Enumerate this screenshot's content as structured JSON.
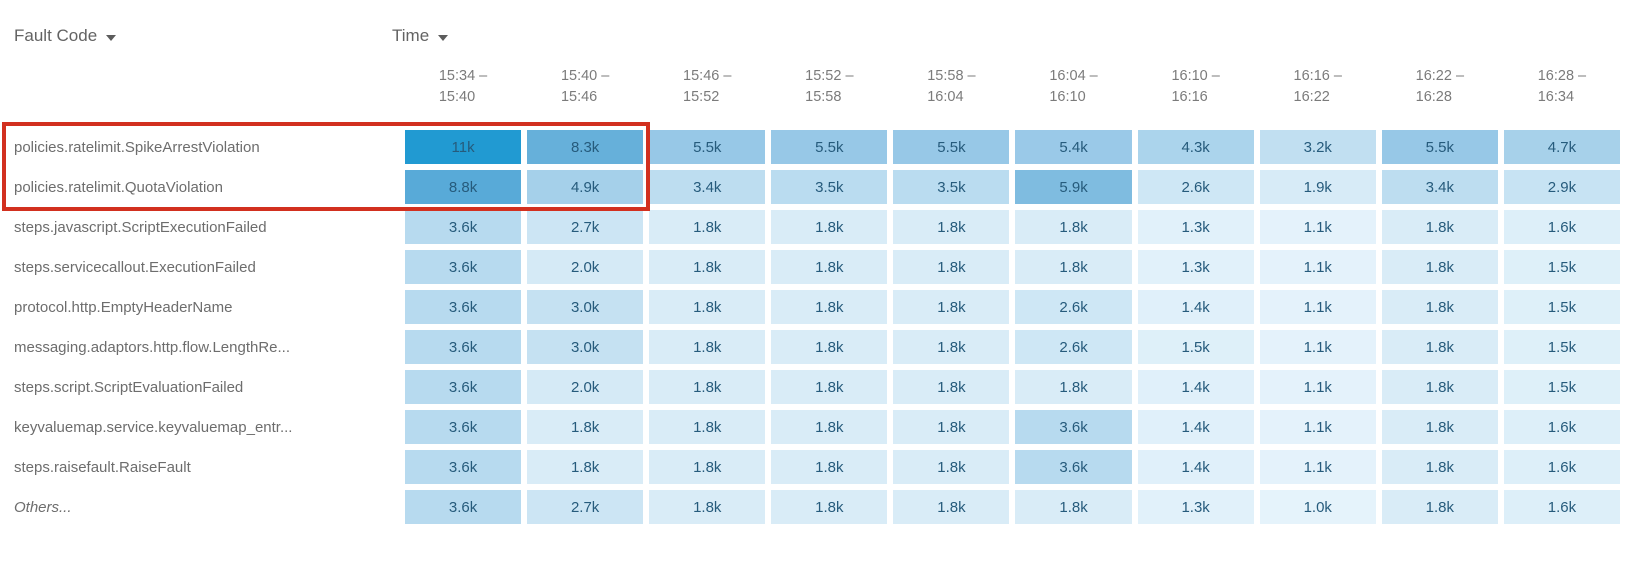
{
  "header": {
    "fault_code_label": "Fault Code",
    "time_label": "Time"
  },
  "highlight": {
    "color": "#d2301f",
    "note_rows_highlighted": 2,
    "note_cols_highlighted": 2
  },
  "color_scale": {
    "11k": "#219ad2",
    "8.8k": "#58aad8",
    "8.3k": "#66b0da",
    "5.9k": "#7fbce0",
    "5.5k": "#97c8e7",
    "5.4k": "#9ac9e8",
    "4.9k": "#a5d0ea",
    "4.7k": "#a7d1ea",
    "4.3k": "#abd4ec",
    "3.6k": "#b7daef",
    "3.5k": "#badcf0",
    "3.4k": "#bdddf0",
    "3.2k": "#c1dff1",
    "3.0k": "#c5e1f2",
    "2.9k": "#c7e3f3",
    "2.7k": "#cce5f4",
    "2.6k": "#cee7f5",
    "2.0k": "#d5eaf6",
    "1.9k": "#d7ebf7",
    "1.8k": "#d9ecf7",
    "1.6k": "#ddeff9",
    "1.5k": "#def0f9",
    "1.4k": "#e0f0fa",
    "1.3k": "#e1f1fa",
    "1.1k": "#e4f2fb",
    "1.0k": "#e5f3fb"
  },
  "chart_data": {
    "type": "heatmap",
    "xlabel": "Time",
    "ylabel": "Fault Code",
    "value_range": [
      1000,
      11000
    ],
    "legend": "none",
    "columns": [
      {
        "line1": "15:34 –",
        "line2": "15:40"
      },
      {
        "line1": "15:40 –",
        "line2": "15:46"
      },
      {
        "line1": "15:46 –",
        "line2": "15:52"
      },
      {
        "line1": "15:52 –",
        "line2": "15:58"
      },
      {
        "line1": "15:58 –",
        "line2": "16:04"
      },
      {
        "line1": "16:04 –",
        "line2": "16:10"
      },
      {
        "line1": "16:10 –",
        "line2": "16:16"
      },
      {
        "line1": "16:16 –",
        "line2": "16:22"
      },
      {
        "line1": "16:22 –",
        "line2": "16:28"
      },
      {
        "line1": "16:28 –",
        "line2": "16:34"
      }
    ],
    "rows": [
      {
        "label": "policies.ratelimit.SpikeArrestViolation",
        "italic": false,
        "highlighted": true,
        "values": [
          "11k",
          "8.3k",
          "5.5k",
          "5.5k",
          "5.5k",
          "5.4k",
          "4.3k",
          "3.2k",
          "5.5k",
          "4.7k"
        ],
        "numeric": [
          11000,
          8300,
          5500,
          5500,
          5500,
          5400,
          4300,
          3200,
          5500,
          4700
        ]
      },
      {
        "label": "policies.ratelimit.QuotaViolation",
        "italic": false,
        "highlighted": true,
        "values": [
          "8.8k",
          "4.9k",
          "3.4k",
          "3.5k",
          "3.5k",
          "5.9k",
          "2.6k",
          "1.9k",
          "3.4k",
          "2.9k"
        ],
        "numeric": [
          8800,
          4900,
          3400,
          3500,
          3500,
          5900,
          2600,
          1900,
          3400,
          2900
        ]
      },
      {
        "label": "steps.javascript.ScriptExecutionFailed",
        "italic": false,
        "highlighted": false,
        "values": [
          "3.6k",
          "2.7k",
          "1.8k",
          "1.8k",
          "1.8k",
          "1.8k",
          "1.3k",
          "1.1k",
          "1.8k",
          "1.6k"
        ],
        "numeric": [
          3600,
          2700,
          1800,
          1800,
          1800,
          1800,
          1300,
          1100,
          1800,
          1600
        ]
      },
      {
        "label": "steps.servicecallout.ExecutionFailed",
        "italic": false,
        "highlighted": false,
        "values": [
          "3.6k",
          "2.0k",
          "1.8k",
          "1.8k",
          "1.8k",
          "1.8k",
          "1.3k",
          "1.1k",
          "1.8k",
          "1.5k"
        ],
        "numeric": [
          3600,
          2000,
          1800,
          1800,
          1800,
          1800,
          1300,
          1100,
          1800,
          1500
        ]
      },
      {
        "label": "protocol.http.EmptyHeaderName",
        "italic": false,
        "highlighted": false,
        "values": [
          "3.6k",
          "3.0k",
          "1.8k",
          "1.8k",
          "1.8k",
          "2.6k",
          "1.4k",
          "1.1k",
          "1.8k",
          "1.5k"
        ],
        "numeric": [
          3600,
          3000,
          1800,
          1800,
          1800,
          2600,
          1400,
          1100,
          1800,
          1500
        ]
      },
      {
        "label": "messaging.adaptors.http.flow.LengthRe...",
        "italic": false,
        "highlighted": false,
        "values": [
          "3.6k",
          "3.0k",
          "1.8k",
          "1.8k",
          "1.8k",
          "2.6k",
          "1.5k",
          "1.1k",
          "1.8k",
          "1.5k"
        ],
        "numeric": [
          3600,
          3000,
          1800,
          1800,
          1800,
          2600,
          1500,
          1100,
          1800,
          1500
        ]
      },
      {
        "label": "steps.script.ScriptEvaluationFailed",
        "italic": false,
        "highlighted": false,
        "values": [
          "3.6k",
          "2.0k",
          "1.8k",
          "1.8k",
          "1.8k",
          "1.8k",
          "1.4k",
          "1.1k",
          "1.8k",
          "1.5k"
        ],
        "numeric": [
          3600,
          2000,
          1800,
          1800,
          1800,
          1800,
          1400,
          1100,
          1800,
          1500
        ]
      },
      {
        "label": "keyvaluemap.service.keyvaluemap_entr...",
        "italic": false,
        "highlighted": false,
        "values": [
          "3.6k",
          "1.8k",
          "1.8k",
          "1.8k",
          "1.8k",
          "3.6k",
          "1.4k",
          "1.1k",
          "1.8k",
          "1.6k"
        ],
        "numeric": [
          3600,
          1800,
          1800,
          1800,
          1800,
          3600,
          1400,
          1100,
          1800,
          1600
        ]
      },
      {
        "label": "steps.raisefault.RaiseFault",
        "italic": false,
        "highlighted": false,
        "values": [
          "3.6k",
          "1.8k",
          "1.8k",
          "1.8k",
          "1.8k",
          "3.6k",
          "1.4k",
          "1.1k",
          "1.8k",
          "1.6k"
        ],
        "numeric": [
          3600,
          1800,
          1800,
          1800,
          1800,
          3600,
          1400,
          1100,
          1800,
          1600
        ]
      },
      {
        "label": "Others...",
        "italic": true,
        "highlighted": false,
        "values": [
          "3.6k",
          "2.7k",
          "1.8k",
          "1.8k",
          "1.8k",
          "1.8k",
          "1.3k",
          "1.0k",
          "1.8k",
          "1.6k"
        ],
        "numeric": [
          3600,
          2700,
          1800,
          1800,
          1800,
          1800,
          1300,
          1000,
          1800,
          1600
        ]
      }
    ]
  }
}
